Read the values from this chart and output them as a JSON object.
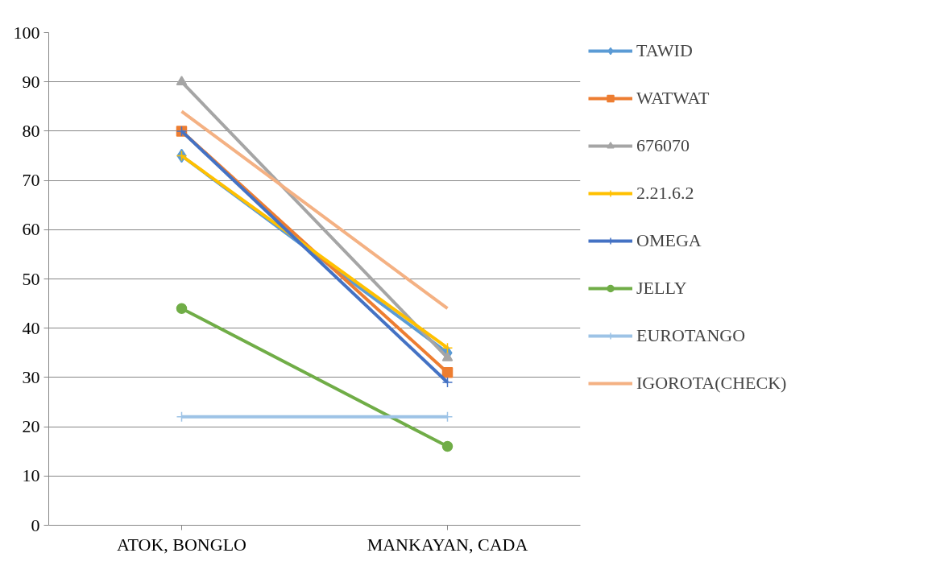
{
  "chart_data": {
    "type": "line",
    "categories": [
      "ATOK, BONGLO",
      "MANKAYAN, CADA"
    ],
    "series": [
      {
        "name": "TAWID",
        "color": "#5b9bd5",
        "marker": "diamond",
        "values": [
          75,
          35
        ]
      },
      {
        "name": "WATWAT",
        "color": "#ed7d31",
        "marker": "square",
        "values": [
          80,
          31
        ]
      },
      {
        "name": "676070",
        "color": "#a5a5a5",
        "marker": "triangle",
        "values": [
          90,
          34
        ]
      },
      {
        "name": "2.21.6.2",
        "color": "#ffc000",
        "marker": "cross",
        "values": [
          75,
          36
        ]
      },
      {
        "name": "OMEGA",
        "color": "#4472c4",
        "marker": "cross",
        "values": [
          80,
          29
        ]
      },
      {
        "name": "JELLY",
        "color": "#70ad47",
        "marker": "circle",
        "values": [
          44,
          16
        ]
      },
      {
        "name": "EUROTANGO",
        "color": "#9dc3e6",
        "marker": "cross",
        "values": [
          22,
          22
        ]
      },
      {
        "name": "IGOROTA(CHECK)",
        "color": "#f4b183",
        "marker": "none",
        "values": [
          84,
          44
        ]
      }
    ],
    "ylim": [
      0,
      100
    ],
    "yticks": [
      0,
      10,
      20,
      30,
      40,
      50,
      60,
      70,
      80,
      90,
      100
    ],
    "grid": "y",
    "legend": "right"
  }
}
